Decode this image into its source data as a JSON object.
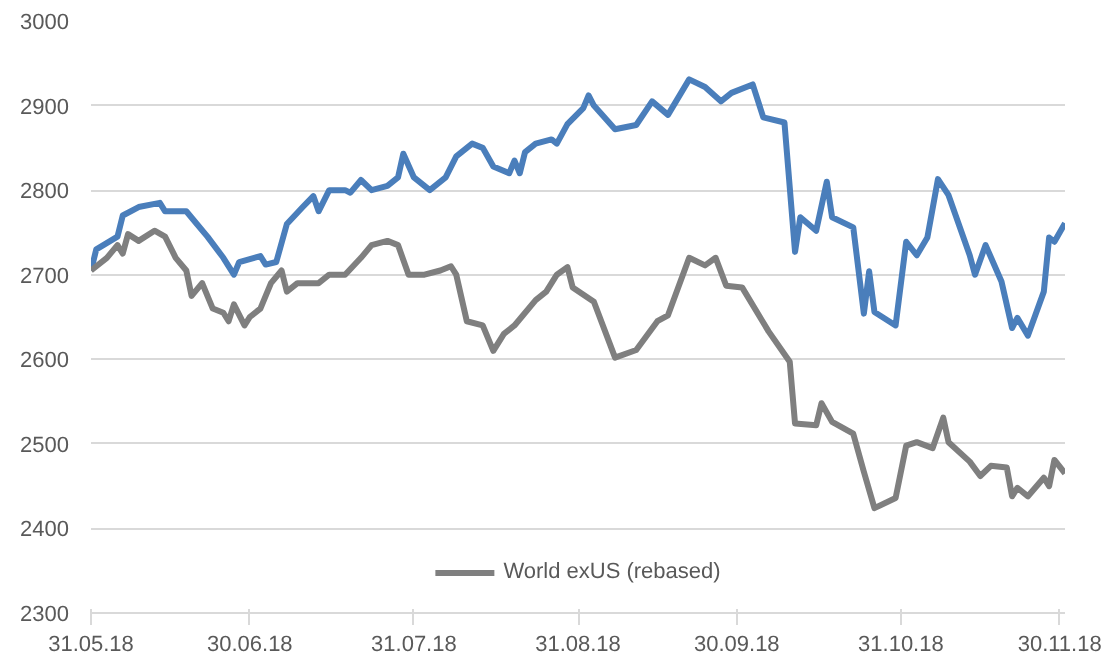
{
  "chart_data": {
    "type": "line",
    "xlim": [
      "2018-05-31",
      "2018-12-01"
    ],
    "xticks": [
      {
        "value": "2018-05-31",
        "label": "31.05.18"
      },
      {
        "value": "2018-06-30",
        "label": "30.06.18"
      },
      {
        "value": "2018-07-31",
        "label": "31.07.18"
      },
      {
        "value": "2018-08-31",
        "label": "31.08.18"
      },
      {
        "value": "2018-09-30",
        "label": "30.09.18"
      },
      {
        "value": "2018-10-31",
        "label": "31.10.18"
      },
      {
        "value": "2018-11-30",
        "label": "30.11.18"
      }
    ],
    "ylim": [
      2300,
      3000
    ],
    "yticks": [
      2300,
      2400,
      2500,
      2600,
      2700,
      2800,
      2900,
      3000
    ],
    "grid": "y",
    "legend": "bottom",
    "line_style": "solid",
    "series": [
      {
        "color": "#4a7ebb",
        "x": [
          "2018-05-31",
          "2018-06-01",
          "2018-06-05",
          "2018-06-06",
          "2018-06-09",
          "2018-06-13",
          "2018-06-14",
          "2018-06-18",
          "2018-06-20",
          "2018-06-22",
          "2018-06-25",
          "2018-06-27",
          "2018-06-28",
          "2018-07-02",
          "2018-07-03",
          "2018-07-05",
          "2018-07-07",
          "2018-07-10",
          "2018-07-12",
          "2018-07-13",
          "2018-07-15",
          "2018-07-18",
          "2018-07-19",
          "2018-07-21",
          "2018-07-23",
          "2018-07-26",
          "2018-07-28",
          "2018-07-29",
          "2018-07-31",
          "2018-08-03",
          "2018-08-06",
          "2018-08-08",
          "2018-08-11",
          "2018-08-13",
          "2018-08-15",
          "2018-08-18",
          "2018-08-19",
          "2018-08-20",
          "2018-08-21",
          "2018-08-23",
          "2018-08-26",
          "2018-08-27",
          "2018-08-29",
          "2018-09-01",
          "2018-09-02",
          "2018-09-03",
          "2018-09-07",
          "2018-09-11",
          "2018-09-14",
          "2018-09-17",
          "2018-09-21",
          "2018-09-24",
          "2018-09-27",
          "2018-09-29",
          "2018-10-03",
          "2018-10-05",
          "2018-10-09",
          "2018-10-11",
          "2018-10-12",
          "2018-10-15",
          "2018-10-17",
          "2018-10-18",
          "2018-10-22",
          "2018-10-24",
          "2018-10-25",
          "2018-10-26",
          "2018-10-30",
          "2018-11-01",
          "2018-11-03",
          "2018-11-05",
          "2018-11-07",
          "2018-11-09",
          "2018-11-13",
          "2018-11-14",
          "2018-11-16",
          "2018-11-19",
          "2018-11-21",
          "2018-11-22",
          "2018-11-24",
          "2018-11-27",
          "2018-11-28",
          "2018-11-29",
          "2018-12-01"
        ],
        "values": [
          2705,
          2730,
          2745,
          2770,
          2780,
          2785,
          2775,
          2775,
          2760,
          2745,
          2720,
          2700,
          2715,
          2722,
          2712,
          2715,
          2760,
          2780,
          2793,
          2775,
          2800,
          2800,
          2797,
          2812,
          2800,
          2805,
          2815,
          2843,
          2815,
          2800,
          2815,
          2840,
          2855,
          2850,
          2828,
          2820,
          2835,
          2820,
          2845,
          2855,
          2860,
          2855,
          2878,
          2897,
          2912,
          2900,
          2872,
          2877,
          2905,
          2889,
          2931,
          2922,
          2905,
          2915,
          2925,
          2886,
          2880,
          2727,
          2768,
          2752,
          2810,
          2768,
          2756,
          2654,
          2704,
          2656,
          2640,
          2739,
          2723,
          2744,
          2813,
          2794,
          2723,
          2700,
          2735,
          2692,
          2637,
          2649,
          2628,
          2680,
          2744,
          2739,
          2761
        ]
      },
      {
        "name": "World exUS (rebased)",
        "color": "#7f7f7f",
        "x": [
          "2018-05-31",
          "2018-06-03",
          "2018-06-05",
          "2018-06-06",
          "2018-06-07",
          "2018-06-09",
          "2018-06-12",
          "2018-06-14",
          "2018-06-16",
          "2018-06-18",
          "2018-06-19",
          "2018-06-21",
          "2018-06-23",
          "2018-06-25",
          "2018-06-26",
          "2018-06-27",
          "2018-06-29",
          "2018-06-30",
          "2018-07-02",
          "2018-07-04",
          "2018-07-06",
          "2018-07-07",
          "2018-07-09",
          "2018-07-13",
          "2018-07-15",
          "2018-07-18",
          "2018-07-21",
          "2018-07-23",
          "2018-07-26",
          "2018-07-28",
          "2018-07-30",
          "2018-08-02",
          "2018-08-05",
          "2018-08-07",
          "2018-08-08",
          "2018-08-10",
          "2018-08-13",
          "2018-08-15",
          "2018-08-17",
          "2018-08-19",
          "2018-08-23",
          "2018-08-25",
          "2018-08-27",
          "2018-08-29",
          "2018-08-30",
          "2018-09-03",
          "2018-09-07",
          "2018-09-11",
          "2018-09-15",
          "2018-09-17",
          "2018-09-21",
          "2018-09-24",
          "2018-09-26",
          "2018-09-28",
          "2018-10-01",
          "2018-10-06",
          "2018-10-10",
          "2018-10-11",
          "2018-10-15",
          "2018-10-16",
          "2018-10-18",
          "2018-10-22",
          "2018-10-24",
          "2018-10-26",
          "2018-10-30",
          "2018-11-01",
          "2018-11-03",
          "2018-11-06",
          "2018-11-08",
          "2018-11-09",
          "2018-11-13",
          "2018-11-15",
          "2018-11-17",
          "2018-11-20",
          "2018-11-21",
          "2018-11-22",
          "2018-11-24",
          "2018-11-27",
          "2018-11-28",
          "2018-11-29",
          "2018-12-01"
        ],
        "values": [
          2705,
          2720,
          2735,
          2725,
          2748,
          2740,
          2752,
          2745,
          2720,
          2705,
          2675,
          2690,
          2660,
          2655,
          2645,
          2665,
          2640,
          2650,
          2660,
          2690,
          2705,
          2680,
          2690,
          2690,
          2700,
          2700,
          2720,
          2735,
          2740,
          2735,
          2700,
          2700,
          2705,
          2710,
          2700,
          2645,
          2640,
          2610,
          2630,
          2640,
          2670,
          2680,
          2700,
          2709,
          2685,
          2668,
          2602,
          2611,
          2645,
          2652,
          2720,
          2711,
          2720,
          2687,
          2685,
          2633,
          2597,
          2524,
          2522,
          2548,
          2526,
          2512,
          2467,
          2424,
          2436,
          2498,
          2502,
          2495,
          2531,
          2502,
          2479,
          2462,
          2474,
          2472,
          2438,
          2448,
          2438,
          2460,
          2450,
          2481,
          2465
        ]
      }
    ]
  }
}
